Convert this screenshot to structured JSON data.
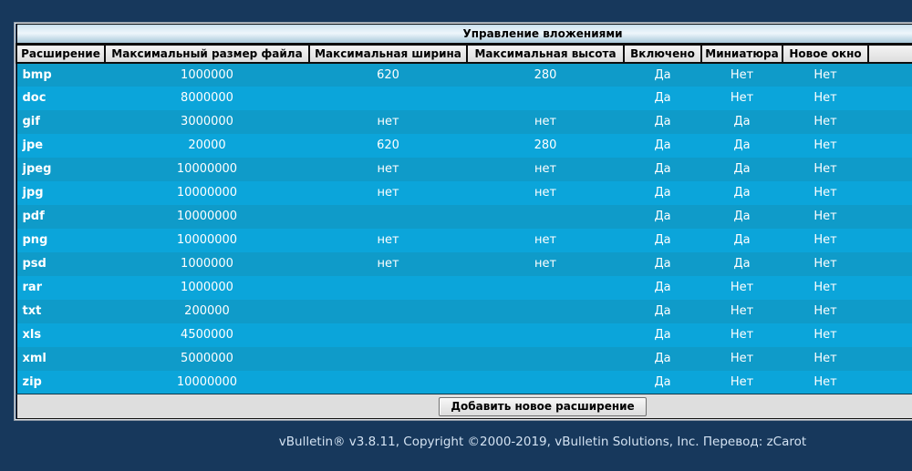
{
  "panel": {
    "title": "Управление вложениями"
  },
  "columns": [
    "Расширение",
    "Максимальный размер файла",
    "Максимальная ширина",
    "Максимальная высота",
    "Включено",
    "Миниатюра",
    "Новое окно",
    ""
  ],
  "rows": [
    {
      "ext": "bmp",
      "max_size": "1000000",
      "max_width": "620",
      "max_height": "280",
      "enabled": "Да",
      "thumbnail": "Нет",
      "new_window": "Нет"
    },
    {
      "ext": "doc",
      "max_size": "8000000",
      "max_width": "",
      "max_height": "",
      "enabled": "Да",
      "thumbnail": "Нет",
      "new_window": "Нет"
    },
    {
      "ext": "gif",
      "max_size": "3000000",
      "max_width": "нет",
      "max_height": "нет",
      "enabled": "Да",
      "thumbnail": "Да",
      "new_window": "Нет"
    },
    {
      "ext": "jpe",
      "max_size": "20000",
      "max_width": "620",
      "max_height": "280",
      "enabled": "Да",
      "thumbnail": "Да",
      "new_window": "Нет"
    },
    {
      "ext": "jpeg",
      "max_size": "10000000",
      "max_width": "нет",
      "max_height": "нет",
      "enabled": "Да",
      "thumbnail": "Да",
      "new_window": "Нет"
    },
    {
      "ext": "jpg",
      "max_size": "10000000",
      "max_width": "нет",
      "max_height": "нет",
      "enabled": "Да",
      "thumbnail": "Да",
      "new_window": "Нет"
    },
    {
      "ext": "pdf",
      "max_size": "10000000",
      "max_width": "",
      "max_height": "",
      "enabled": "Да",
      "thumbnail": "Да",
      "new_window": "Нет"
    },
    {
      "ext": "png",
      "max_size": "10000000",
      "max_width": "нет",
      "max_height": "нет",
      "enabled": "Да",
      "thumbnail": "Да",
      "new_window": "Нет"
    },
    {
      "ext": "psd",
      "max_size": "1000000",
      "max_width": "нет",
      "max_height": "нет",
      "enabled": "Да",
      "thumbnail": "Да",
      "new_window": "Нет"
    },
    {
      "ext": "rar",
      "max_size": "1000000",
      "max_width": "",
      "max_height": "",
      "enabled": "Да",
      "thumbnail": "Нет",
      "new_window": "Нет"
    },
    {
      "ext": "txt",
      "max_size": "200000",
      "max_width": "",
      "max_height": "",
      "enabled": "Да",
      "thumbnail": "Нет",
      "new_window": "Нет"
    },
    {
      "ext": "xls",
      "max_size": "4500000",
      "max_width": "",
      "max_height": "",
      "enabled": "Да",
      "thumbnail": "Нет",
      "new_window": "Нет"
    },
    {
      "ext": "xml",
      "max_size": "5000000",
      "max_width": "",
      "max_height": "",
      "enabled": "Да",
      "thumbnail": "Нет",
      "new_window": "Нет"
    },
    {
      "ext": "zip",
      "max_size": "10000000",
      "max_width": "",
      "max_height": "",
      "enabled": "Да",
      "thumbnail": "Нет",
      "new_window": "Нет"
    }
  ],
  "footer_bar": {
    "add_button_label": "Добавить новое расширение"
  },
  "page_footer": {
    "copyright": "vBulletin® v3.8.11, Copyright ©2000-2019, vBulletin Solutions, Inc. Перевод: zCarot"
  },
  "colors": {
    "page_bg": "#17385c",
    "row_odd": "#0f9bc9",
    "row_even": "#0ba5da",
    "header_cell_bg": "#e3e3e3",
    "title_gradient_top": "#d5e8f3",
    "title_gradient_bottom": "#a6c6d9",
    "footer_bar_bg": "#dedede",
    "copyright_text": "#d3e2f2"
  }
}
